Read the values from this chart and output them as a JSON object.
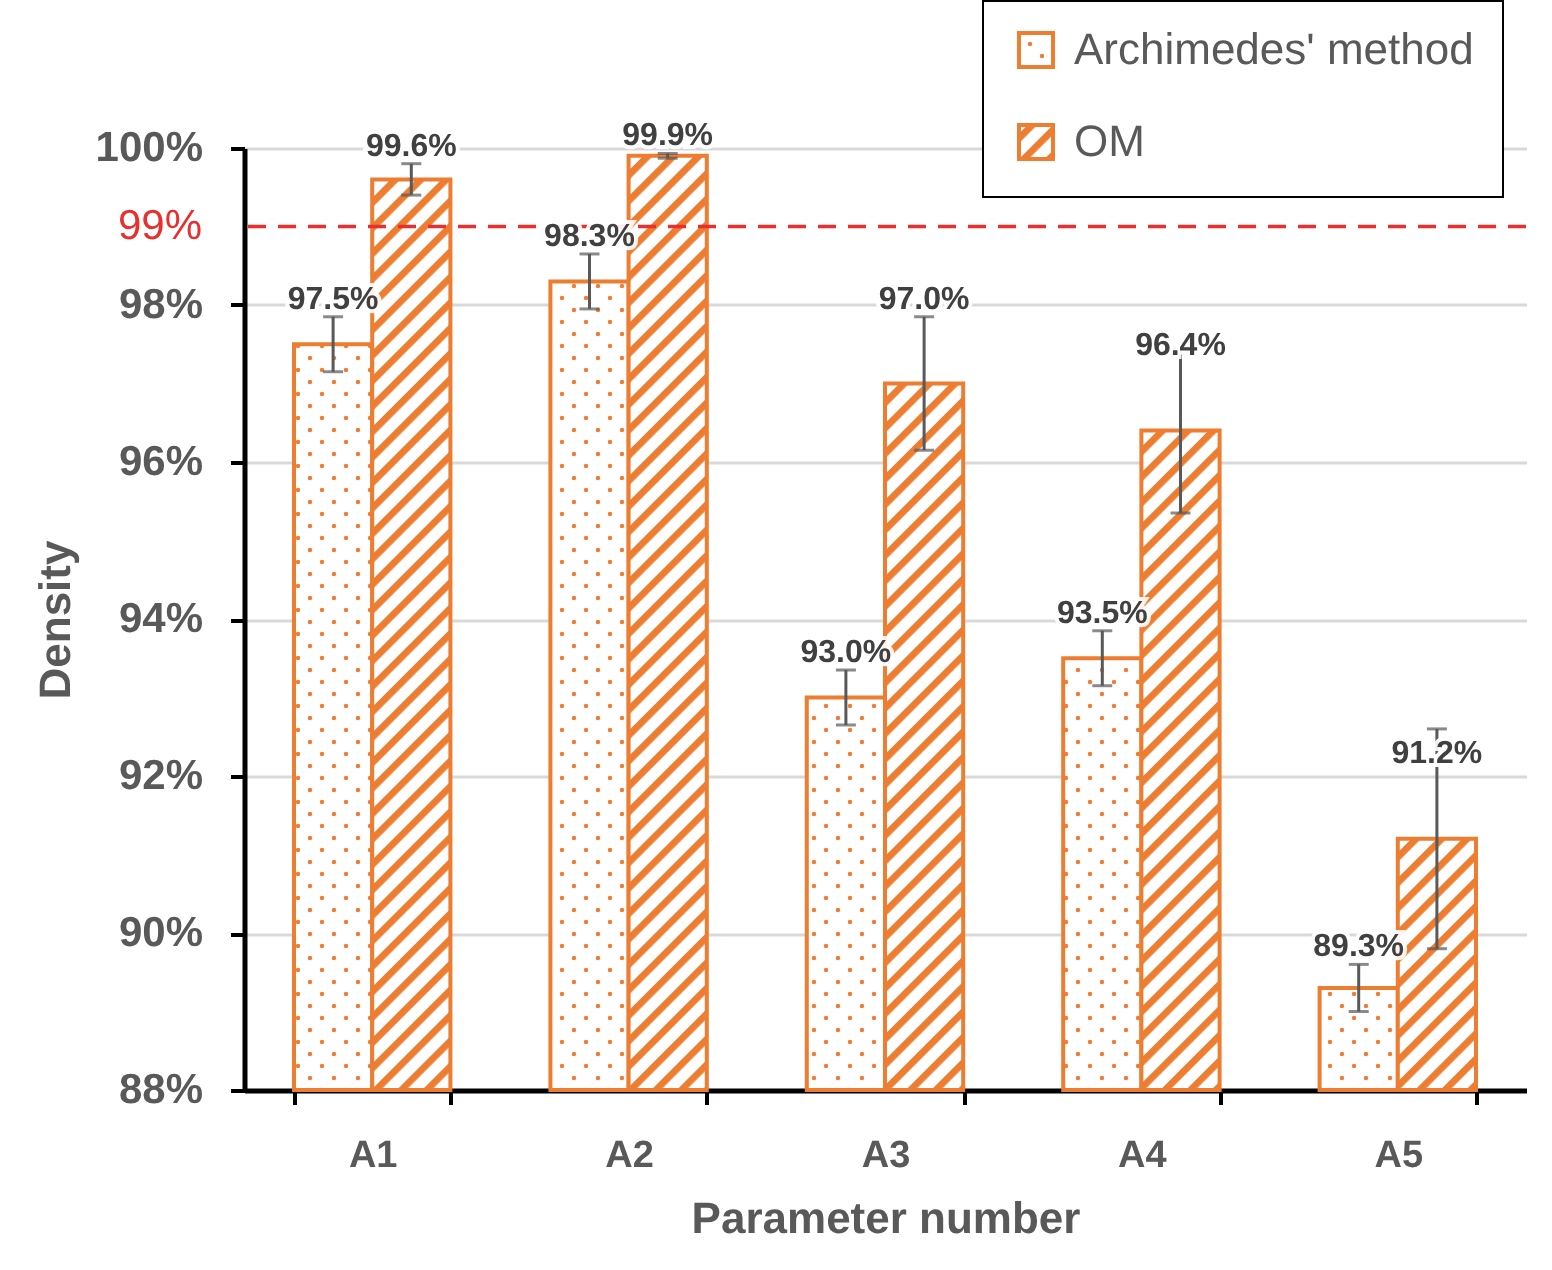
{
  "chart_data": {
    "type": "bar",
    "xlabel": "Parameter number",
    "ylabel": "Density",
    "categories": [
      "A1",
      "A2",
      "A3",
      "A4",
      "A5"
    ],
    "series": [
      {
        "name": "Archimedes' method",
        "color": "#ed7d31",
        "values": [
          97.5,
          98.3,
          93.0,
          93.5,
          89.3
        ],
        "errors": [
          0.35,
          0.35,
          0.35,
          0.35,
          0.3
        ],
        "value_labels": [
          "97.5%",
          "98.3%",
          "93.0%",
          "93.5%",
          "89.3%"
        ]
      },
      {
        "name": "OM",
        "color": "#ed7d31",
        "values": [
          99.6,
          99.9,
          97.0,
          96.4,
          91.2
        ],
        "errors": [
          0.2,
          0.03,
          0.85,
          1.05,
          1.4
        ],
        "value_labels": [
          "99.6%",
          "99.9%",
          "97.0%",
          "96.4%",
          "91.2%"
        ]
      }
    ],
    "ylim": [
      88,
      100
    ],
    "yticks": [
      {
        "value": 88,
        "label": "88%"
      },
      {
        "value": 90,
        "label": "90%"
      },
      {
        "value": 92,
        "label": "92%"
      },
      {
        "value": 94,
        "label": "94%"
      },
      {
        "value": 96,
        "label": "96%"
      },
      {
        "value": 98,
        "label": "98%"
      },
      {
        "value": 100,
        "label": "100%"
      }
    ],
    "ref_lines": [
      {
        "axis": "y",
        "value": 99,
        "label": "99%",
        "color": "#e8312f",
        "line_style": "dashed"
      }
    ],
    "grid": "y",
    "legend": "top right"
  }
}
